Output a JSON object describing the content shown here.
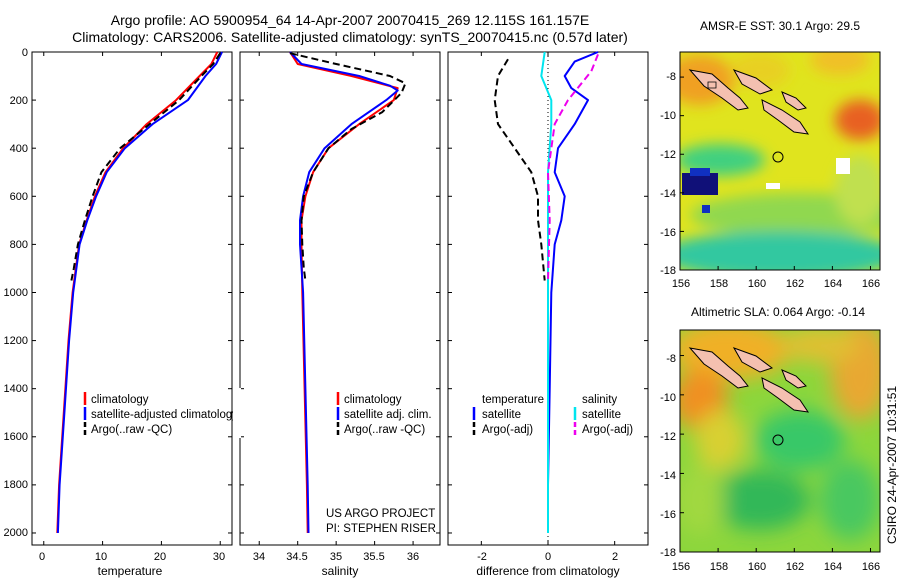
{
  "title_line1": "Argo profile: AO 5900954_64 14-Apr-2007 20070415_269 12.115S 161.157E",
  "title_line2": "Climatology: CARS2006. Satellite-adjusted climatology: synTS_20070415.nc (0.57d later)",
  "footer_credit_1": "US ARGO PROJECT",
  "footer_credit_2": "PI: STEPHEN RISER",
  "timestamp": "CSIRO 24-Apr-2007 10:31:51",
  "colors": {
    "climatology": "#ff0000",
    "satellite": "#0000ff",
    "argo": "#000000",
    "salinity_sat": "#00e5ee",
    "salinity_argo": "#ee00ee"
  },
  "chart_data": [
    {
      "type": "line",
      "panel": "temperature",
      "xlabel": "temperature",
      "xlim": [
        -2,
        32
      ],
      "xticks": [
        "0",
        "10",
        "20",
        "30"
      ],
      "ylim": [
        2050,
        0
      ],
      "yticks": [
        "0",
        "200",
        "400",
        "600",
        "800",
        "1000",
        "1200",
        "1400",
        "1600",
        "1800",
        "2000"
      ],
      "legend": [
        "climatology",
        "satellite-adjusted climatology",
        "Argo(..raw -QC)"
      ],
      "series": [
        {
          "name": "climatology",
          "color": "#ff0000",
          "dash": "",
          "points": [
            [
              29.5,
              0
            ],
            [
              28.5,
              50
            ],
            [
              26.5,
              100
            ],
            [
              22.5,
              200
            ],
            [
              17.5,
              300
            ],
            [
              13.5,
              400
            ],
            [
              10.5,
              500
            ],
            [
              8.7,
              600
            ],
            [
              7.3,
              700
            ],
            [
              6.0,
              800
            ],
            [
              4.9,
              1000
            ],
            [
              4.2,
              1200
            ],
            [
              3.4,
              1500
            ],
            [
              2.6,
              1800
            ],
            [
              2.3,
              2000
            ]
          ]
        },
        {
          "name": "satellite-adjusted climatology",
          "color": "#0000ff",
          "dash": "",
          "points": [
            [
              30.3,
              0
            ],
            [
              29.3,
              50
            ],
            [
              27.5,
              100
            ],
            [
              24.5,
              200
            ],
            [
              18.5,
              300
            ],
            [
              13.8,
              400
            ],
            [
              10.7,
              500
            ],
            [
              8.9,
              600
            ],
            [
              7.4,
              700
            ],
            [
              6.1,
              800
            ],
            [
              5.0,
              1000
            ],
            [
              4.3,
              1200
            ],
            [
              3.5,
              1500
            ],
            [
              2.7,
              1800
            ],
            [
              2.4,
              2000
            ]
          ]
        },
        {
          "name": "Argo(..raw -QC)",
          "color": "#000000",
          "dash": "7,4",
          "points": [
            [
              30.0,
              5
            ],
            [
              28.8,
              50
            ],
            [
              26.8,
              100
            ],
            [
              23.0,
              200
            ],
            [
              18.0,
              300
            ],
            [
              13.0,
              400
            ],
            [
              9.8,
              500
            ],
            [
              8.3,
              600
            ],
            [
              7.0,
              700
            ],
            [
              5.8,
              800
            ],
            [
              5.1,
              900
            ],
            [
              4.7,
              950
            ]
          ]
        }
      ]
    },
    {
      "type": "line",
      "panel": "salinity",
      "xlabel": "salinity",
      "xlim": [
        33.75,
        36.35
      ],
      "xticks": [
        "34",
        "34.5",
        "35",
        "35.5",
        "36"
      ],
      "ylim": [
        2050,
        0
      ],
      "legend": [
        "climatology",
        "satellite adj. clim.",
        "Argo(..raw -QC)"
      ],
      "series": [
        {
          "name": "climatology",
          "color": "#ff0000",
          "dash": "",
          "points": [
            [
              34.4,
              0
            ],
            [
              34.5,
              50
            ],
            [
              35.2,
              100
            ],
            [
              35.8,
              150
            ],
            [
              35.75,
              200
            ],
            [
              35.3,
              300
            ],
            [
              34.9,
              400
            ],
            [
              34.7,
              500
            ],
            [
              34.6,
              600
            ],
            [
              34.55,
              700
            ],
            [
              34.55,
              800
            ],
            [
              34.56,
              1000
            ],
            [
              34.59,
              1400
            ],
            [
              34.62,
              1800
            ],
            [
              34.63,
              2000
            ]
          ]
        },
        {
          "name": "satellite adj. clim.",
          "color": "#0000ff",
          "dash": "",
          "points": [
            [
              34.4,
              0
            ],
            [
              34.55,
              50
            ],
            [
              35.3,
              100
            ],
            [
              35.7,
              140
            ],
            [
              35.8,
              160
            ],
            [
              35.65,
              200
            ],
            [
              35.2,
              300
            ],
            [
              34.85,
              400
            ],
            [
              34.65,
              500
            ],
            [
              34.57,
              600
            ],
            [
              34.53,
              700
            ],
            [
              34.53,
              800
            ],
            [
              34.57,
              1000
            ],
            [
              34.6,
              1400
            ],
            [
              34.63,
              1800
            ],
            [
              34.64,
              2000
            ]
          ]
        },
        {
          "name": "Argo(..raw -QC)",
          "color": "#000000",
          "dash": "7,4",
          "points": [
            [
              34.4,
              5
            ],
            [
              35.0,
              50
            ],
            [
              35.7,
              100
            ],
            [
              35.9,
              130
            ],
            [
              35.85,
              170
            ],
            [
              35.6,
              250
            ],
            [
              35.2,
              320
            ],
            [
              34.9,
              400
            ],
            [
              34.7,
              500
            ],
            [
              34.58,
              600
            ],
            [
              34.55,
              700
            ],
            [
              34.56,
              800
            ],
            [
              34.58,
              900
            ],
            [
              34.6,
              950
            ]
          ]
        }
      ]
    },
    {
      "type": "line",
      "panel": "difference",
      "xlabel": "difference from climatology",
      "xlim": [
        -3.0,
        3.0
      ],
      "xticks": [
        "-2",
        "0",
        "2"
      ],
      "ylim": [
        2050,
        0
      ],
      "legend_temperature_title": "temperature",
      "legend_salinity_title": "salinity",
      "legend": [
        "satellite",
        "Argo(-adj)",
        "satellite",
        "Argo(-adj)"
      ],
      "series": [
        {
          "name": "temperature satellite",
          "color": "#0000ff",
          "dash": "",
          "points": [
            [
              1.5,
              0
            ],
            [
              0.8,
              40
            ],
            [
              0.5,
              100
            ],
            [
              0.7,
              150
            ],
            [
              1.2,
              200
            ],
            [
              0.8,
              300
            ],
            [
              0.3,
              400
            ],
            [
              0.2,
              500
            ],
            [
              0.5,
              600
            ],
            [
              0.4,
              700
            ],
            [
              0.2,
              800
            ],
            [
              0.1,
              1000
            ],
            [
              0.05,
              1400
            ],
            [
              0.0,
              1800
            ],
            [
              0.0,
              2000
            ]
          ]
        },
        {
          "name": "temperature Argo(-adj)",
          "color": "#000000",
          "dash": "7,4",
          "points": [
            [
              -1.2,
              30
            ],
            [
              -1.5,
              100
            ],
            [
              -1.6,
              200
            ],
            [
              -1.5,
              300
            ],
            [
              -1.0,
              400
            ],
            [
              -0.5,
              500
            ],
            [
              -0.3,
              600
            ],
            [
              -0.3,
              700
            ],
            [
              -0.2,
              800
            ],
            [
              -0.1,
              950
            ]
          ]
        },
        {
          "name": "salinity satellite",
          "color": "#00e5ee",
          "dash": "",
          "points": [
            [
              -0.1,
              0
            ],
            [
              -0.2,
              100
            ],
            [
              0.1,
              200
            ],
            [
              0.1,
              300
            ],
            [
              0.0,
              500
            ],
            [
              0.0,
              800
            ],
            [
              0.0,
              1200
            ],
            [
              0.0,
              2000
            ]
          ]
        },
        {
          "name": "salinity Argo(-adj)",
          "color": "#ee00ee",
          "dash": "7,4",
          "points": [
            [
              1.5,
              10
            ],
            [
              1.3,
              80
            ],
            [
              0.6,
              200
            ],
            [
              0.2,
              300
            ],
            [
              0.0,
              500
            ],
            [
              0.05,
              700
            ],
            [
              0.0,
              950
            ]
          ]
        }
      ]
    },
    {
      "type": "heatmap",
      "panel": "sst",
      "title": "AMSR-E SST: 30.1 Argo: 29.5",
      "xlim": [
        156,
        166.5
      ],
      "ylim": [
        -18,
        -6.7
      ],
      "xticks": [
        "156",
        "158",
        "160",
        "162",
        "164",
        "166"
      ],
      "yticks": [
        "-8",
        "-10",
        "-12",
        "-14",
        "-16",
        "-18"
      ],
      "marker": [
        161.157,
        -12.115
      ]
    },
    {
      "type": "heatmap",
      "panel": "sla",
      "title": "Altimetric SLA: 0.064 Argo: -0.14",
      "xlim": [
        156,
        166.5
      ],
      "ylim": [
        -18,
        -6.7
      ],
      "xticks": [
        "156",
        "158",
        "160",
        "162",
        "164",
        "166"
      ],
      "yticks": [
        "-8",
        "-10",
        "-12",
        "-14",
        "-16",
        "-18"
      ],
      "marker": [
        161.157,
        -12.115
      ]
    }
  ]
}
